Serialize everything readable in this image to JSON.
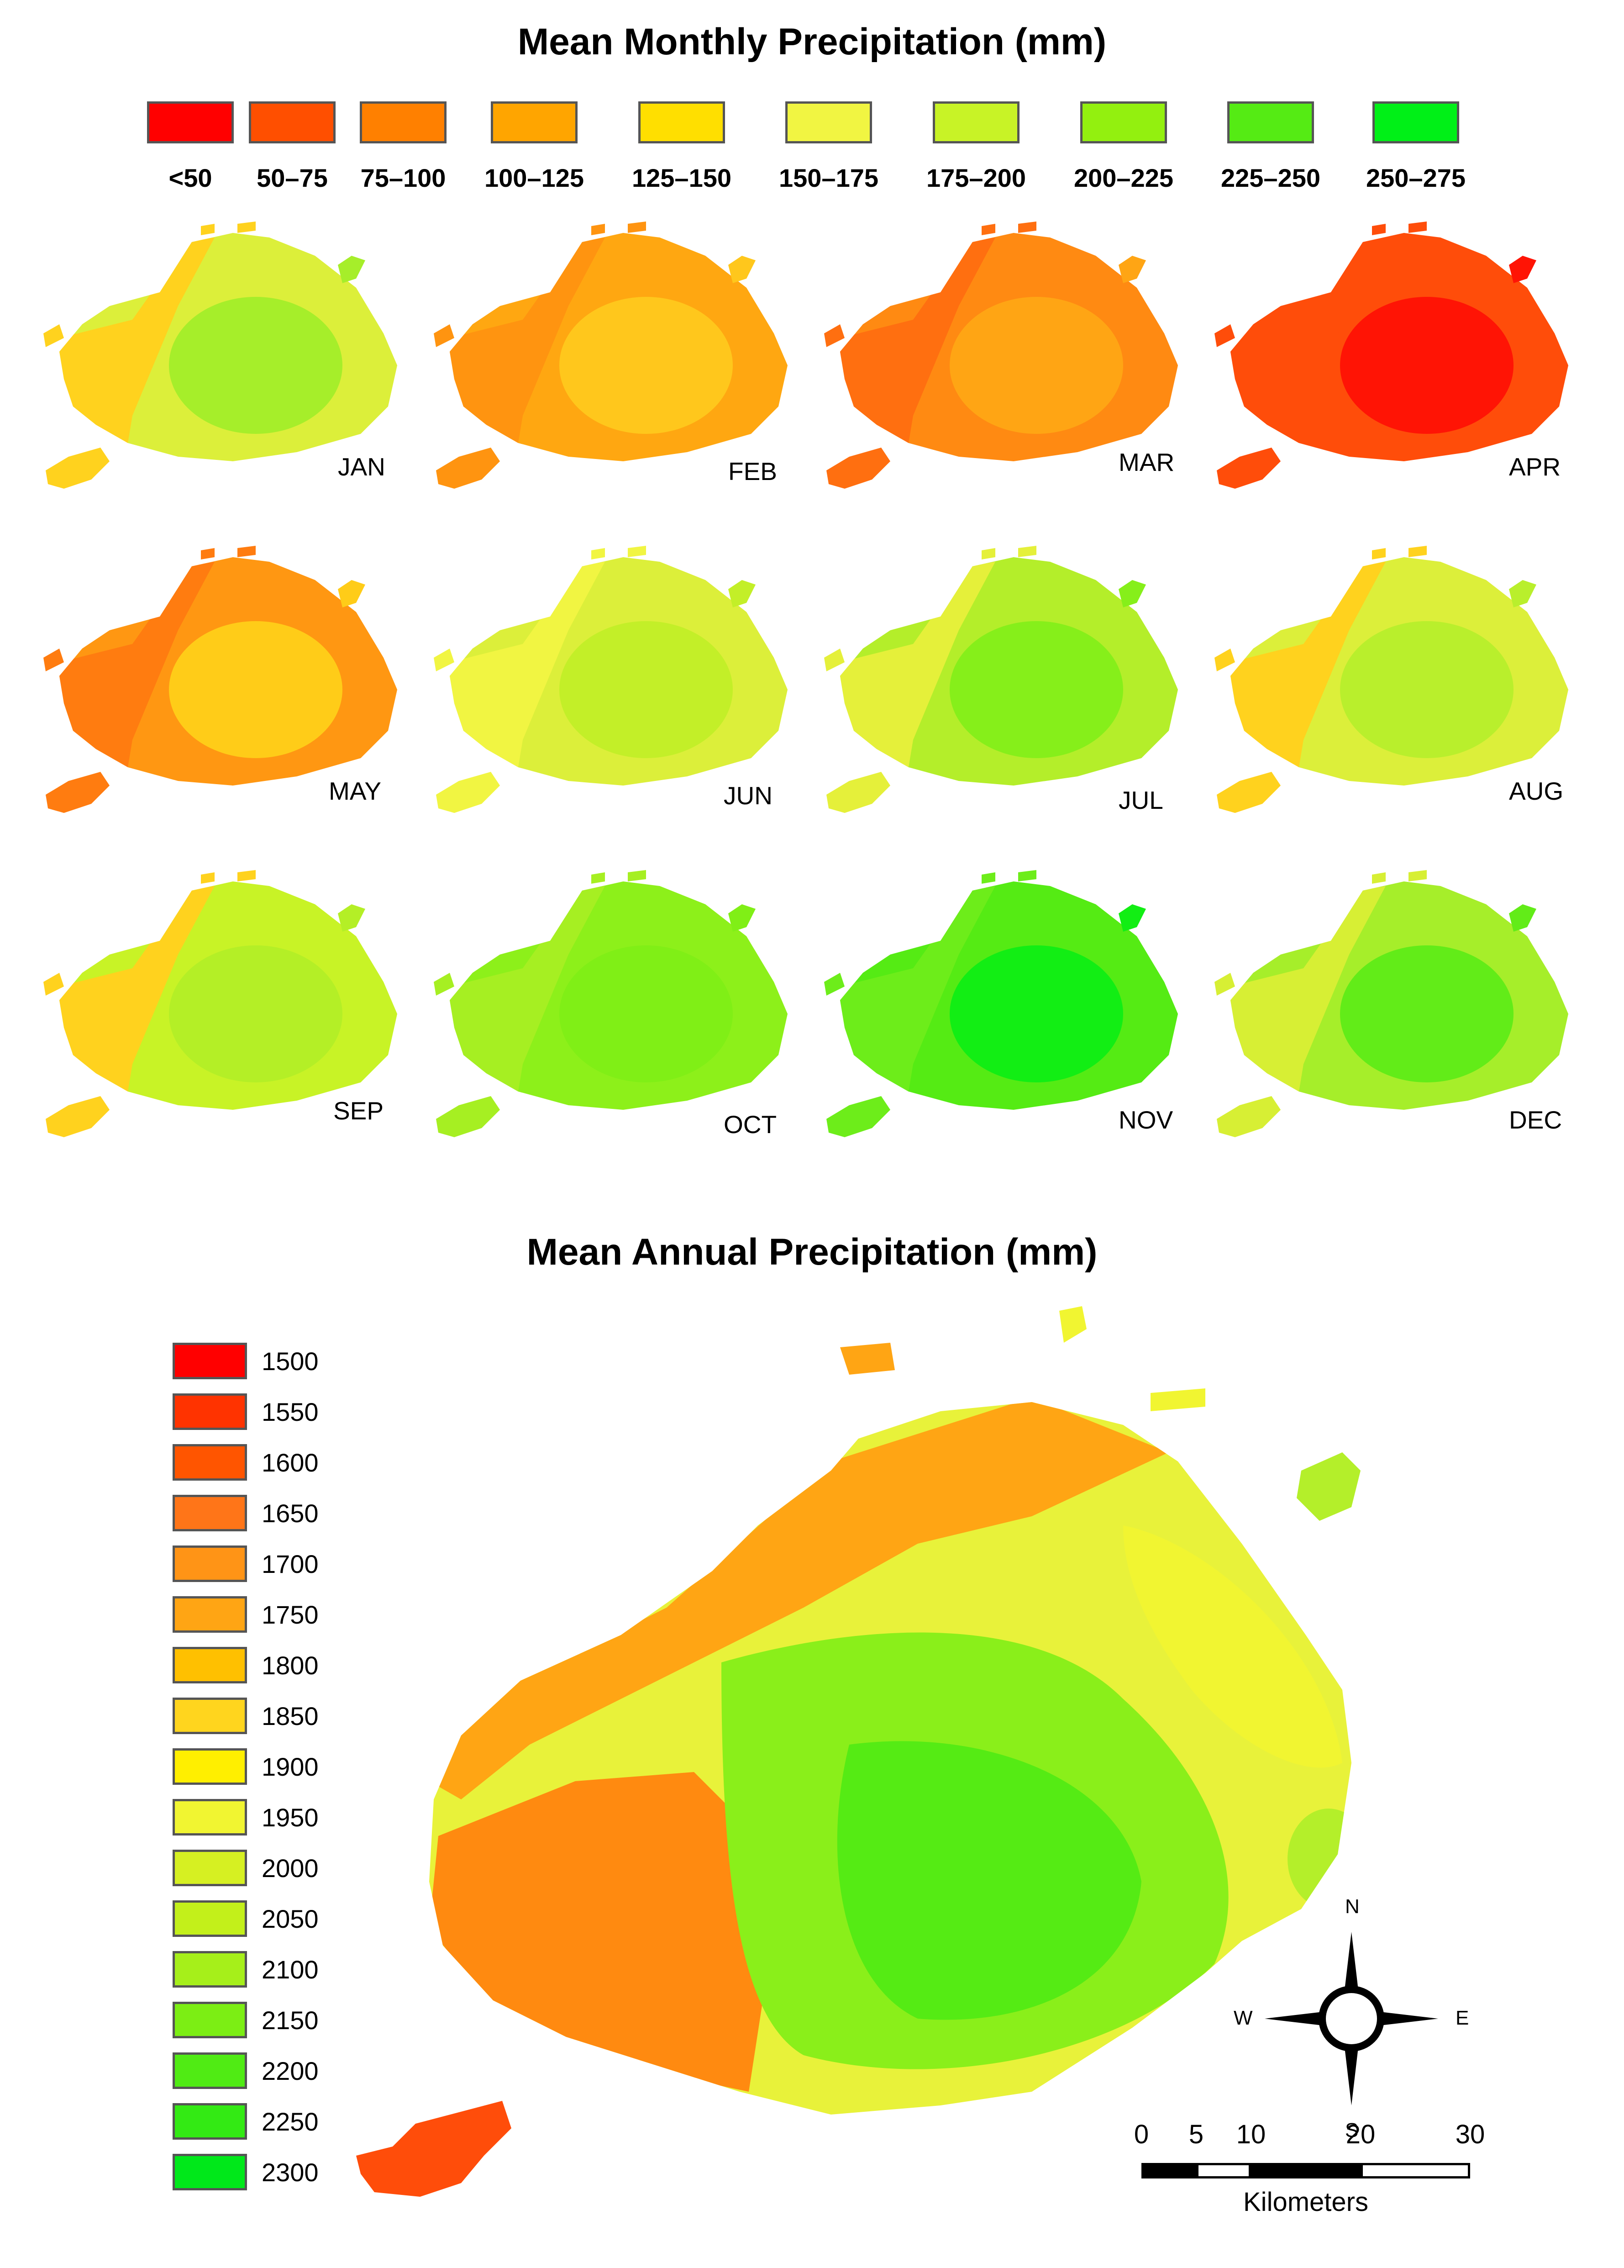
{
  "monthly": {
    "title": "Mean Monthly Precipitation (mm)",
    "legend": [
      {
        "label": "<50",
        "color": "#ff0000"
      },
      {
        "label": "50–75",
        "color": "#ff4f00"
      },
      {
        "label": "75–100",
        "color": "#ff8000"
      },
      {
        "label": "100–125",
        "color": "#ffa500"
      },
      {
        "label": "125–150",
        "color": "#ffdf00"
      },
      {
        "label": "150–175",
        "color": "#f1f542"
      },
      {
        "label": "175–200",
        "color": "#c8f326"
      },
      {
        "label": "200–225",
        "color": "#93f00f"
      },
      {
        "label": "225–250",
        "color": "#55eb14"
      },
      {
        "label": "250–275",
        "color": "#00f017"
      }
    ],
    "months": [
      {
        "label": "JAN",
        "base": "#dcef3a",
        "west": "#ffd21e",
        "core": "#a6ee2a"
      },
      {
        "label": "FEB",
        "base": "#ffa711",
        "west": "#ff9410",
        "core": "#ffc71c"
      },
      {
        "label": "MAR",
        "base": "#ff8a12",
        "west": "#ff6f10",
        "core": "#ffa514"
      },
      {
        "label": "APR",
        "base": "#ff4d0a",
        "west": "#ff4d0a",
        "core": "#ff1405"
      },
      {
        "label": "MAY",
        "base": "#ff9712",
        "west": "#ff7c10",
        "core": "#ffcc18"
      },
      {
        "label": "JUN",
        "base": "#dcef3a",
        "west": "#f1f542",
        "core": "#c3ef28"
      },
      {
        "label": "JUL",
        "base": "#b4ee2a",
        "west": "#e5f03a",
        "core": "#86ef1a"
      },
      {
        "label": "AUG",
        "base": "#dcef3a",
        "west": "#ffd21e",
        "core": "#b9ef2c"
      },
      {
        "label": "SEP",
        "base": "#c8f326",
        "west": "#ffd21e",
        "core": "#b4ef26"
      },
      {
        "label": "OCT",
        "base": "#8df01a",
        "west": "#a6ef22",
        "core": "#80ef16"
      },
      {
        "label": "NOV",
        "base": "#55eb14",
        "west": "#6ded1a",
        "core": "#12ee14"
      },
      {
        "label": "DEC",
        "base": "#a6ee2a",
        "west": "#d7ef34",
        "core": "#62ec18"
      }
    ]
  },
  "annual": {
    "title": "Mean Annual Precipitation (mm)",
    "legend": [
      {
        "label": "1500",
        "color": "#ff0000"
      },
      {
        "label": "1550",
        "color": "#ff3300"
      },
      {
        "label": "1600",
        "color": "#ff5500"
      },
      {
        "label": "1650",
        "color": "#ff7518"
      },
      {
        "label": "1700",
        "color": "#ff9416"
      },
      {
        "label": "1750",
        "color": "#ffa514"
      },
      {
        "label": "1800",
        "color": "#ffc000"
      },
      {
        "label": "1850",
        "color": "#ffd51e"
      },
      {
        "label": "1900",
        "color": "#ffef00"
      },
      {
        "label": "1950",
        "color": "#f1f531"
      },
      {
        "label": "2000",
        "color": "#d6f022"
      },
      {
        "label": "2050",
        "color": "#c3f01a"
      },
      {
        "label": "2100",
        "color": "#a6ef1a"
      },
      {
        "label": "2150",
        "color": "#7cee14"
      },
      {
        "label": "2200",
        "color": "#50eb14"
      },
      {
        "label": "2250",
        "color": "#33ea14"
      },
      {
        "label": "2300",
        "color": "#00e81a"
      }
    ],
    "map_colors": {
      "base": "#e8f23a",
      "northwest_band": "#ffa514",
      "west": "#ff8a10",
      "southwest_island": "#ff4d0a",
      "core": "#8aef1a",
      "inner_core": "#55eb14",
      "east": "#f1f531",
      "east_lobe": "#b4ef2a"
    }
  },
  "compass": {
    "n": "N",
    "s": "S",
    "e": "E",
    "w": "W"
  },
  "scale_bar": {
    "ticks": [
      "0",
      "5",
      "10",
      "20",
      "30"
    ],
    "unit": "Kilometers"
  }
}
